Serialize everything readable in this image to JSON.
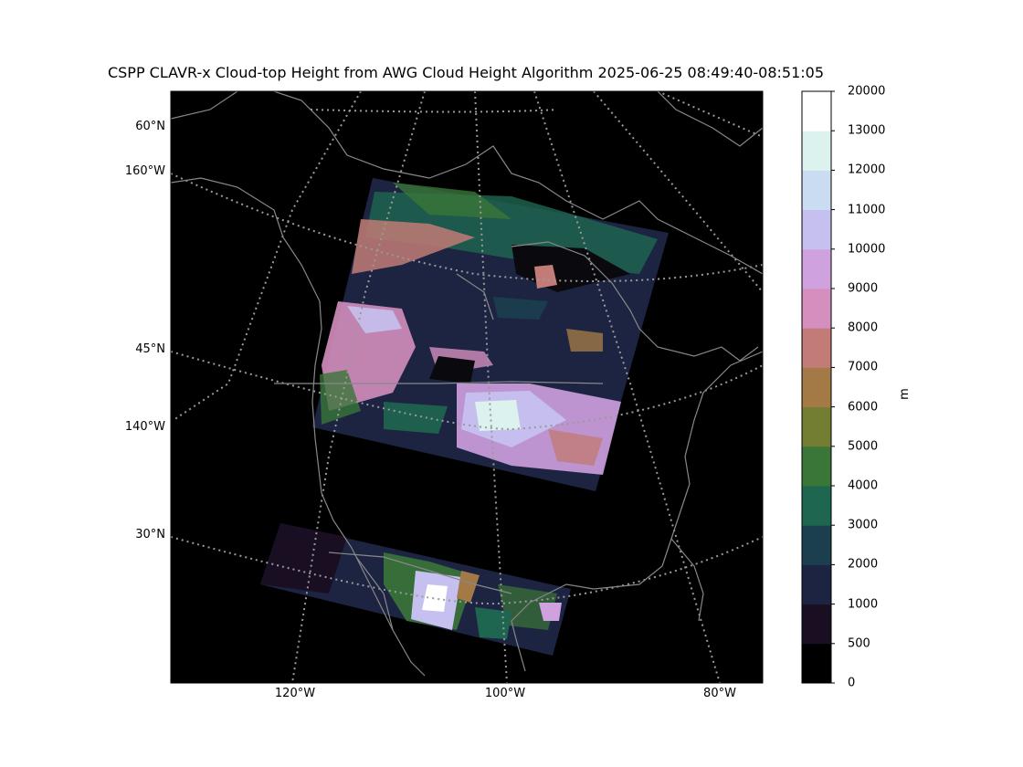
{
  "title": "CSPP CLAVR-x Cloud-top Height from AWG Cloud Height Algorithm 2025-06-25 08:49:40-08:51:05",
  "lat_labels": [
    "60°N",
    "45°N",
    "30°N"
  ],
  "meridian_left_labels": [
    "160°W",
    "140°W"
  ],
  "lon_labels": [
    "120°W",
    "100°W",
    "80°W"
  ],
  "colorbar": {
    "units": "m",
    "ticks": [
      "0",
      "500",
      "1000",
      "2000",
      "3000",
      "4000",
      "5000",
      "6000",
      "7000",
      "8000",
      "9000",
      "10000",
      "11000",
      "12000",
      "13000",
      "20000"
    ],
    "colors": [
      "#000000",
      "#1a0f22",
      "#1c2442",
      "#1b3f4e",
      "#1f6650",
      "#3a7638",
      "#747e32",
      "#a37946",
      "#c27b76",
      "#d48fbe",
      "#cfa1df",
      "#c6c0f0",
      "#c9dcf2",
      "#dcf2ee",
      "#ffffff"
    ]
  },
  "map_colors": {
    "background": "#000000",
    "coastline": "#888888",
    "gridline": "#9a9a9a"
  }
}
